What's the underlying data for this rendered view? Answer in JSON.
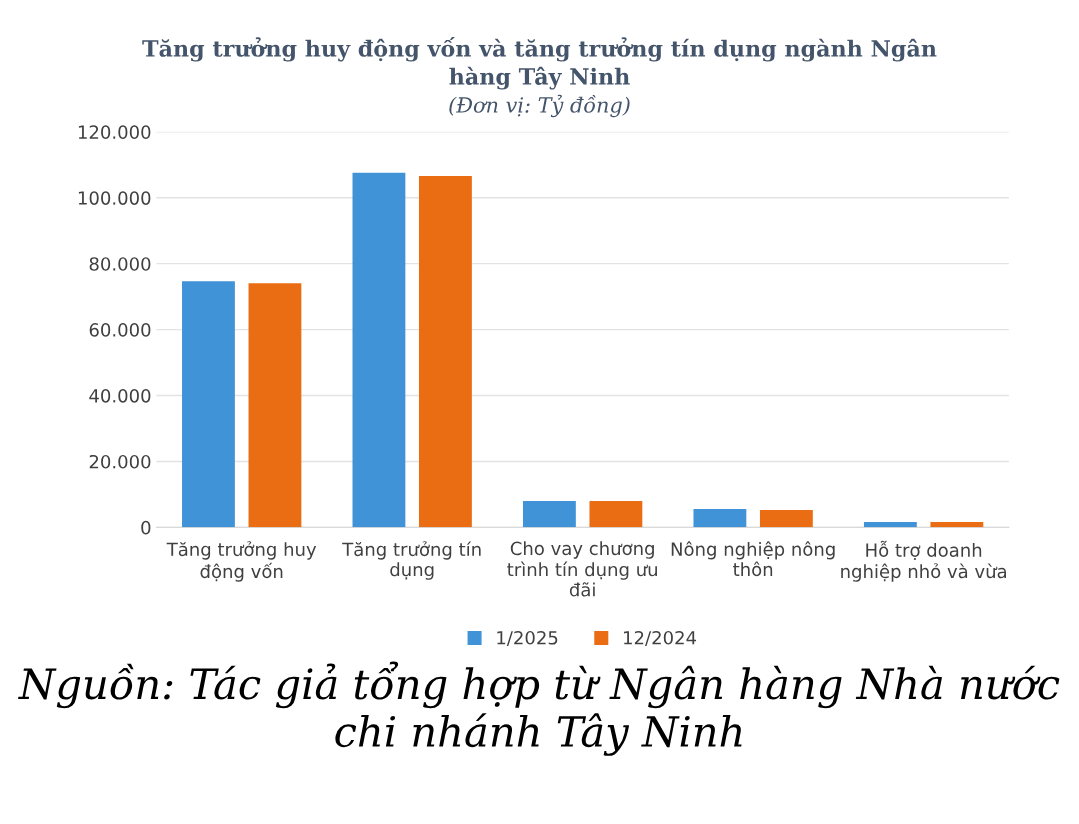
{
  "chart_data": {
    "type": "bar",
    "title": "Tăng trưởng huy động vốn và tăng trưởng tín dụng ngành Ngân\nhàng Tây Ninh",
    "subtitle": "(Đơn vị: Tỷ đồng)",
    "categories": [
      "Tăng trưởng huy\nđộng vốn",
      "Tăng trưởng tín\ndụng",
      "Cho vay chương\ntrình tín dụng ưu\nđãi",
      "Nông nghiệp nông\nthôn",
      "Hỗ trợ doanh\nnghiệp nhỏ và vừa"
    ],
    "series": [
      {
        "name": "1/2025",
        "color": "#4193d8",
        "values": [
          74700,
          107600,
          8000,
          5600,
          1600
        ]
      },
      {
        "name": "12/2024",
        "color": "#ea6d14",
        "values": [
          74100,
          106600,
          8000,
          5300,
          1600
        ]
      }
    ],
    "ylim": [
      0,
      120000
    ],
    "yticks": [
      0,
      {
        "value": 20000,
        "label": "20.000"
      },
      {
        "value": 40000,
        "label": "40.000"
      },
      {
        "value": 60000,
        "label": "60.000"
      },
      {
        "value": 80000,
        "label": "80.000"
      },
      {
        "value": 100000,
        "label": "100.000"
      },
      {
        "value": 120000,
        "label": "120.000"
      }
    ],
    "grid": "y",
    "legend": "bottom",
    "annotations": [
      "Nguồn: Tác giả tổng hợp từ Ngân hàng Nhà nước chi nhánh Tây Ninh"
    ]
  }
}
